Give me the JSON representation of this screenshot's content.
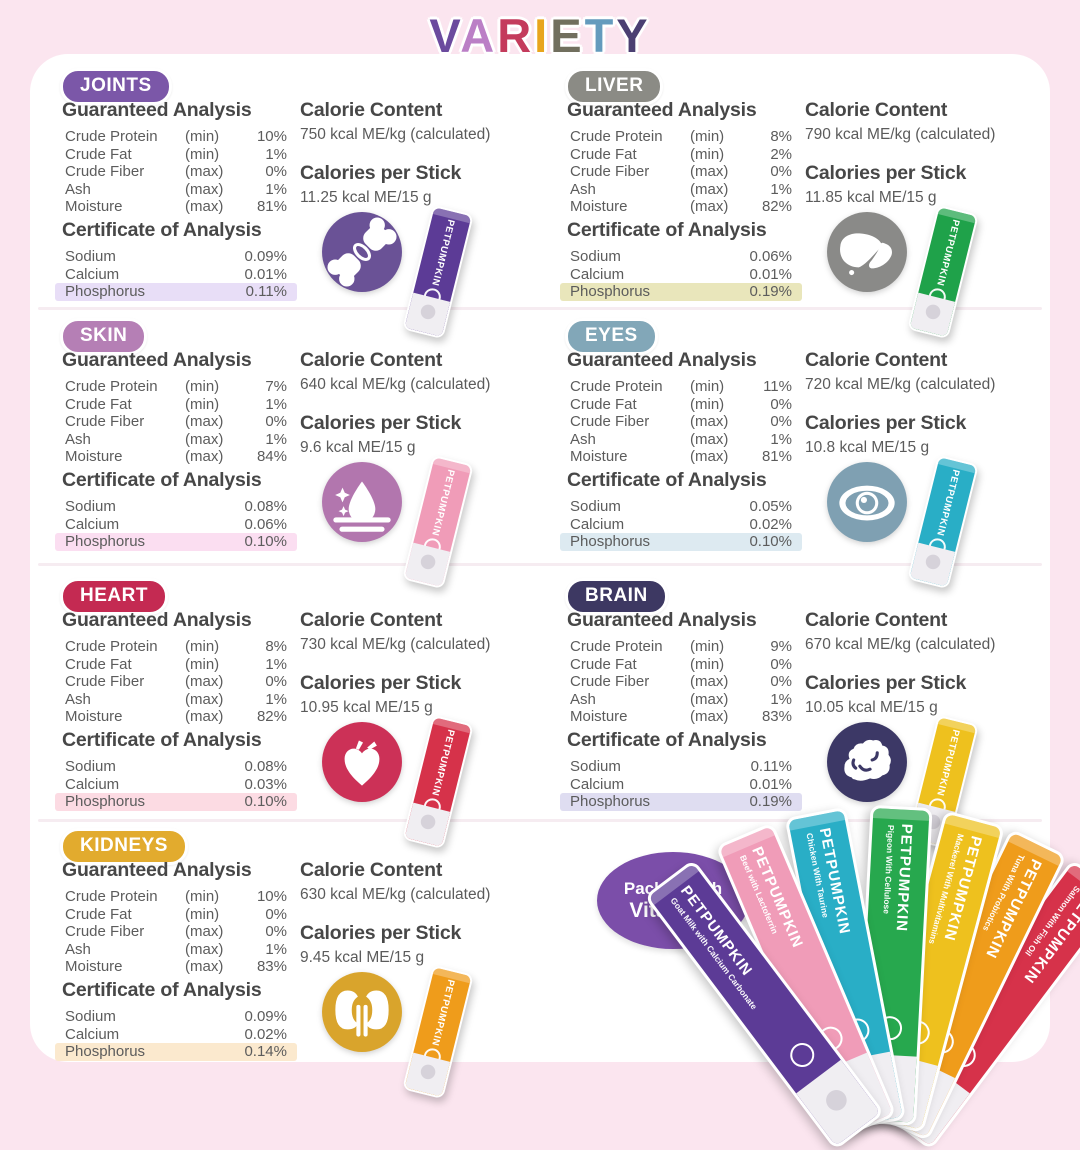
{
  "brand": "PETPUMPKIN",
  "title": {
    "text": "VARIETY",
    "letters": [
      {
        "char": "V",
        "color": "#6b4a9e"
      },
      {
        "char": "A",
        "color": "#bb7fc6"
      },
      {
        "char": "R",
        "color": "#c43b5c"
      },
      {
        "char": "I",
        "color": "#e8a51d"
      },
      {
        "char": "E",
        "color": "#716f5e"
      },
      {
        "char": "T",
        "color": "#649bbd"
      },
      {
        "char": "Y",
        "color": "#4b3f72"
      }
    ]
  },
  "labels": {
    "guaranteed_analysis": "Guaranteed Analysis",
    "certificate_of_analysis": "Certificate of Analysis",
    "calorie_content": "Calorie Content",
    "calories_per_stick": "Calories per Stick"
  },
  "panels": [
    {
      "badge": "JOINTS",
      "colors": {
        "badge": "#7b57a8",
        "highlight": "#e8def7",
        "icon": "#6a5296",
        "stick": "#5c3b96"
      },
      "ga_rows": [
        {
          "label": "Crude Protein",
          "qual": "(min)",
          "value": "10%"
        },
        {
          "label": "Crude Fat",
          "qual": "(min)",
          "value": "1%"
        },
        {
          "label": "Crude Fiber",
          "qual": "(max)",
          "value": "0%"
        },
        {
          "label": "Ash",
          "qual": "(max)",
          "value": "1%"
        },
        {
          "label": "Moisture",
          "qual": "(max)",
          "value": "81%"
        }
      ],
      "coa_rows": [
        {
          "label": "Sodium",
          "value": "0.09%"
        },
        {
          "label": "Calcium",
          "value": "0.01%"
        },
        {
          "label": "Phosphorus",
          "value": "0.11%",
          "highlight": true
        }
      ],
      "calorie_content": "750 kcal ME/kg (calculated)",
      "calories_per_stick": "11.25 kcal ME/15 g"
    },
    {
      "badge": "LIVER",
      "colors": {
        "badge": "#8b8b85",
        "highlight": "#e9e6bb",
        "icon": "#8a8a88",
        "stick": "#1fa24a"
      },
      "ga_rows": [
        {
          "label": "Crude Protein",
          "qual": "(min)",
          "value": "8%"
        },
        {
          "label": "Crude Fat",
          "qual": "(min)",
          "value": "2%"
        },
        {
          "label": "Crude Fiber",
          "qual": "(max)",
          "value": "0%"
        },
        {
          "label": "Ash",
          "qual": "(max)",
          "value": "1%"
        },
        {
          "label": "Moisture",
          "qual": "(max)",
          "value": "82%"
        }
      ],
      "coa_rows": [
        {
          "label": "Sodium",
          "value": "0.06%"
        },
        {
          "label": "Calcium",
          "value": "0.01%"
        },
        {
          "label": "Phosphorus",
          "value": "0.19%",
          "highlight": true
        }
      ],
      "calorie_content": "790 kcal ME/kg (calculated)",
      "calories_per_stick": "11.85 kcal ME/15 g"
    },
    {
      "badge": "SKIN",
      "colors": {
        "badge": "#b57fb5",
        "highlight": "#fbdef1",
        "icon": "#b276ae",
        "stick": "#f09cb8"
      },
      "ga_rows": [
        {
          "label": "Crude Protein",
          "qual": "(min)",
          "value": "7%"
        },
        {
          "label": "Crude Fat",
          "qual": "(min)",
          "value": "1%"
        },
        {
          "label": "Crude Fiber",
          "qual": "(max)",
          "value": "0%"
        },
        {
          "label": "Ash",
          "qual": "(max)",
          "value": "1%"
        },
        {
          "label": "Moisture",
          "qual": "(max)",
          "value": "84%"
        }
      ],
      "coa_rows": [
        {
          "label": "Sodium",
          "value": "0.08%"
        },
        {
          "label": "Calcium",
          "value": "0.06%"
        },
        {
          "label": "Phosphorus",
          "value": "0.10%",
          "highlight": true
        }
      ],
      "calorie_content": "640 kcal ME/kg (calculated)",
      "calories_per_stick": "9.6 kcal ME/15 g"
    },
    {
      "badge": "EYES",
      "colors": {
        "badge": "#82a7b8",
        "highlight": "#ddeaf1",
        "icon": "#7fa0b2",
        "stick": "#29aec6"
      },
      "ga_rows": [
        {
          "label": "Crude Protein",
          "qual": "(min)",
          "value": "11%"
        },
        {
          "label": "Crude Fat",
          "qual": "(min)",
          "value": "0%"
        },
        {
          "label": "Crude Fiber",
          "qual": "(max)",
          "value": "0%"
        },
        {
          "label": "Ash",
          "qual": "(max)",
          "value": "1%"
        },
        {
          "label": "Moisture",
          "qual": "(max)",
          "value": "81%"
        }
      ],
      "coa_rows": [
        {
          "label": "Sodium",
          "value": "0.05%"
        },
        {
          "label": "Calcium",
          "value": "0.02%"
        },
        {
          "label": "Phosphorus",
          "value": "0.10%",
          "highlight": true
        }
      ],
      "calorie_content": "720 kcal ME/kg (calculated)",
      "calories_per_stick": "10.8 kcal ME/15 g"
    },
    {
      "badge": "HEART",
      "colors": {
        "badge": "#c42a52",
        "highlight": "#fcdbe3",
        "icon": "#cc3157",
        "stick": "#d6324a"
      },
      "ga_rows": [
        {
          "label": "Crude Protein",
          "qual": "(min)",
          "value": "8%"
        },
        {
          "label": "Crude Fat",
          "qual": "(min)",
          "value": "1%"
        },
        {
          "label": "Crude Fiber",
          "qual": "(max)",
          "value": "0%"
        },
        {
          "label": "Ash",
          "qual": "(max)",
          "value": "1%"
        },
        {
          "label": "Moisture",
          "qual": "(max)",
          "value": "82%"
        }
      ],
      "coa_rows": [
        {
          "label": "Sodium",
          "value": "0.08%"
        },
        {
          "label": "Calcium",
          "value": "0.03%"
        },
        {
          "label": "Phosphorus",
          "value": "0.10%",
          "highlight": true
        }
      ],
      "calorie_content": "730 kcal ME/kg (calculated)",
      "calories_per_stick": "10.95 kcal ME/15 g"
    },
    {
      "badge": "BRAIN",
      "colors": {
        "badge": "#3d3862",
        "highlight": "#dfddf1",
        "icon": "#3c3866",
        "stick": "#eec11e"
      },
      "ga_rows": [
        {
          "label": "Crude Protein",
          "qual": "(min)",
          "value": "9%"
        },
        {
          "label": "Crude Fat",
          "qual": "(min)",
          "value": "0%"
        },
        {
          "label": "Crude Fiber",
          "qual": "(max)",
          "value": "0%"
        },
        {
          "label": "Ash",
          "qual": "(max)",
          "value": "1%"
        },
        {
          "label": "Moisture",
          "qual": "(max)",
          "value": "83%"
        }
      ],
      "coa_rows": [
        {
          "label": "Sodium",
          "value": "0.11%"
        },
        {
          "label": "Calcium",
          "value": "0.01%"
        },
        {
          "label": "Phosphorus",
          "value": "0.19%",
          "highlight": true
        }
      ],
      "calorie_content": "670 kcal ME/kg (calculated)",
      "calories_per_stick": "10.05 kcal ME/15 g"
    },
    {
      "badge": "KIDNEYS",
      "colors": {
        "badge": "#e2ab2e",
        "highlight": "#fbe9ce",
        "icon": "#d9a42c",
        "stick": "#ef9c1b"
      },
      "ga_rows": [
        {
          "label": "Crude Protein",
          "qual": "(min)",
          "value": "10%"
        },
        {
          "label": "Crude Fat",
          "qual": "(min)",
          "value": "0%"
        },
        {
          "label": "Crude Fiber",
          "qual": "(max)",
          "value": "0%"
        },
        {
          "label": "Ash",
          "qual": "(max)",
          "value": "1%"
        },
        {
          "label": "Moisture",
          "qual": "(max)",
          "value": "83%"
        }
      ],
      "coa_rows": [
        {
          "label": "Sodium",
          "value": "0.09%"
        },
        {
          "label": "Calcium",
          "value": "0.02%"
        },
        {
          "label": "Phosphorus",
          "value": "0.14%",
          "highlight": true
        }
      ],
      "calorie_content": "630 kcal ME/kg (calculated)",
      "calories_per_stick": "9.45 kcal ME/15 g"
    }
  ],
  "promo": {
    "bubble": {
      "line1": "Packed with",
      "line2": "Vitamins",
      "color": "#7b4ea9"
    },
    "sticks": [
      {
        "flavor": "Goat Milk with Calcium Carbonate",
        "color": "#5c3b96"
      },
      {
        "flavor": "Beef with Lactoferrin",
        "color": "#f09cb8"
      },
      {
        "flavor": "Chicken With Taurine",
        "color": "#29aec6"
      },
      {
        "flavor": "Pigeon With Cellulose",
        "color": "#27a84e"
      },
      {
        "flavor": "Mackerel With Multivitamins",
        "color": "#eec11e"
      },
      {
        "flavor": "Tuna With Probiotics",
        "color": "#ef9c1b"
      },
      {
        "flavor": "Salmon With Fish Oil",
        "color": "#d6324a"
      }
    ]
  }
}
